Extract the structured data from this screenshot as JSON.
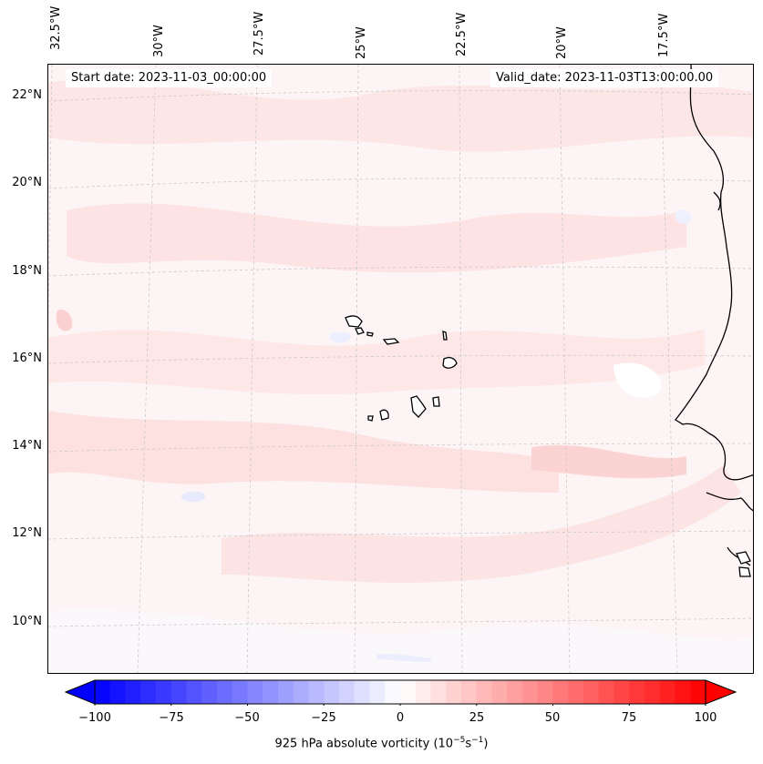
{
  "map": {
    "start_date": "Start date: 2023-11-03_00:00:00",
    "valid_date": "Valid_date: 2023-11-03T13:00:00.00",
    "lon_labels": [
      "32.5°W",
      "30°W",
      "27.5°W",
      "25°W",
      "22.5°W",
      "20°W",
      "17.5°W"
    ],
    "lat_labels": [
      "22°N",
      "20°N",
      "18°N",
      "16°N",
      "14°N",
      "12°N",
      "10°N"
    ]
  },
  "colorbar": {
    "title_prefix": "925 hPa absolute vorticity (10",
    "title_exp1": "−5",
    "title_mid": "s",
    "title_exp2": "−1",
    "title_suffix": ")",
    "ticks": [
      "−100",
      "−75",
      "−50",
      "−25",
      "0",
      "25",
      "50",
      "75",
      "100"
    ],
    "min": -100,
    "max": 100,
    "levels": 41,
    "neg_color": "#0000ff",
    "pos_color": "#ff0000"
  },
  "colors": {
    "coastline": "#000000",
    "gridline": "#c8c8c8"
  }
}
